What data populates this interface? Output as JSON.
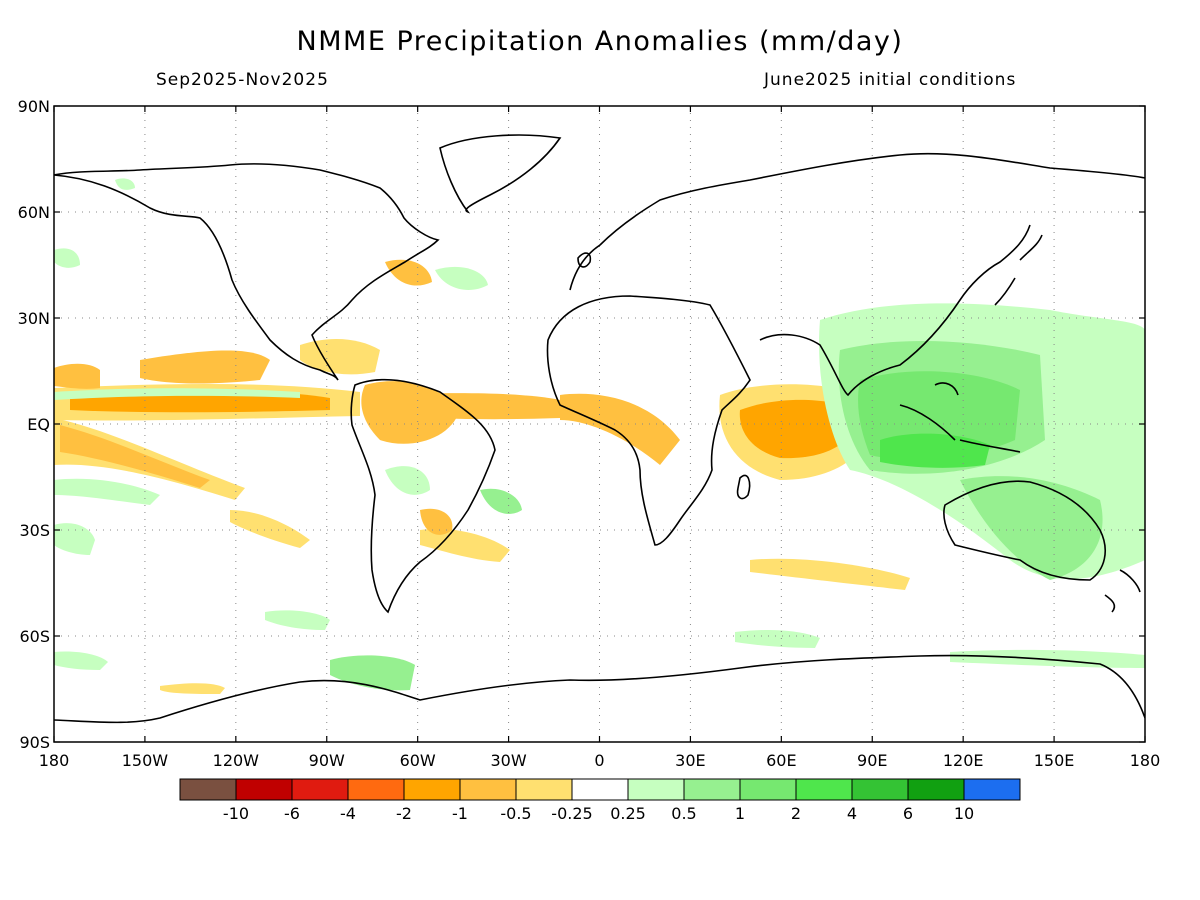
{
  "title": "NMME Precipitation Anomalies (mm/day)",
  "period": "Sep2025-Nov2025",
  "init": "June2025 initial conditions",
  "lat_labels": [
    "90N",
    "60N",
    "30N",
    "EQ",
    "30S",
    "60S",
    "90S"
  ],
  "lon_labels": [
    "180",
    "150W",
    "120W",
    "90W",
    "60W",
    "30W",
    "0",
    "30E",
    "60E",
    "90E",
    "120E",
    "150E",
    "180"
  ],
  "legend": {
    "colors": [
      "#7a5040",
      "#c00000",
      "#e01b10",
      "#ff6a10",
      "#ffa500",
      "#ffc040",
      "#ffe070",
      "#ffffff",
      "#c6ffc0",
      "#96f090",
      "#76e870",
      "#4fe64c",
      "#34c334",
      "#11a011",
      "#1c6ef0"
    ],
    "labels": [
      "-10",
      "-6",
      "-4",
      "-2",
      "-1",
      "-0.5",
      "-0.25",
      "0.25",
      "0.5",
      "1",
      "2",
      "4",
      "6",
      "10"
    ]
  },
  "colors": {
    "dry_light": "#ffe070",
    "dry_mid": "#ffc040",
    "dry_strong": "#ffa500",
    "wet_light": "#c6ffc0",
    "wet_mid": "#96f090",
    "wet_strong": "#76e870",
    "wet_max": "#4fe64c"
  }
}
